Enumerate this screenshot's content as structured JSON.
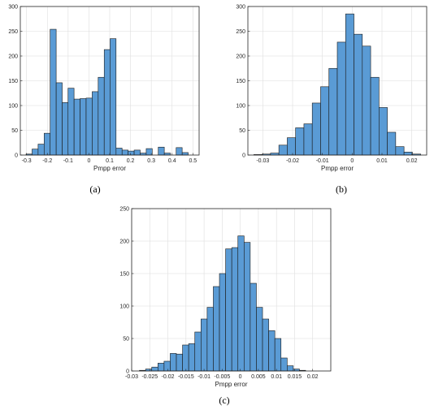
{
  "chart_data": [
    {
      "type": "bar",
      "panel_label": "(a)",
      "xlabel": "Pmpp error",
      "ylabel": "",
      "title": "",
      "xlim": [
        -0.33,
        0.53
      ],
      "ylim": [
        0,
        300
      ],
      "xticks": [
        -0.3,
        -0.2,
        -0.1,
        0,
        0.1,
        0.2,
        0.3,
        0.4,
        0.5
      ],
      "xtick_labels": [
        "-0.3",
        "-0.2",
        "-0.1",
        "0",
        "0.1",
        "0.2",
        "0.3",
        "0.4",
        "0.5"
      ],
      "yticks": [
        0,
        50,
        100,
        150,
        200,
        250,
        300
      ],
      "ytick_labels": [
        "0",
        "50",
        "100",
        "150",
        "200",
        "250",
        "300"
      ],
      "grid": true,
      "bin_width": 0.0289,
      "bin_centers": [
        -0.288,
        -0.259,
        -0.23,
        -0.201,
        -0.172,
        -0.143,
        -0.114,
        -0.086,
        -0.057,
        -0.028,
        0.001,
        0.03,
        0.059,
        0.088,
        0.116,
        0.145,
        0.174,
        0.203,
        0.232,
        0.261,
        0.29,
        0.319,
        0.348,
        0.377,
        0.405,
        0.434,
        0.463,
        0.492
      ],
      "values": [
        2,
        12,
        22,
        44,
        254,
        146,
        106,
        135,
        113,
        114,
        115,
        128,
        157,
        213,
        235,
        14,
        10,
        8,
        10,
        4,
        13,
        0,
        16,
        4,
        0,
        15,
        5,
        0
      ],
      "bar_color": "#5a9bd5"
    },
    {
      "type": "bar",
      "panel_label": "(b)",
      "xlabel": "Pmpp error",
      "ylabel": "",
      "title": "",
      "xlim": [
        -0.035,
        0.025
      ],
      "ylim": [
        0,
        300
      ],
      "xticks": [
        -0.03,
        -0.02,
        -0.01,
        0,
        0.01,
        0.02
      ],
      "xtick_labels": [
        "-0.03",
        "-0.02",
        "-0.01",
        "0",
        "0.01",
        "0.02"
      ],
      "yticks": [
        0,
        50,
        100,
        150,
        200,
        250,
        300
      ],
      "ytick_labels": [
        "0",
        "50",
        "100",
        "150",
        "200",
        "250",
        "300"
      ],
      "grid": true,
      "bin_width": 0.0028,
      "bin_centers": [
        -0.0316,
        -0.0288,
        -0.026,
        -0.0232,
        -0.0204,
        -0.0176,
        -0.0148,
        -0.012,
        -0.0092,
        -0.0064,
        -0.0036,
        -0.0008,
        0.002,
        0.0048,
        0.0076,
        0.0104,
        0.0132,
        0.016,
        0.0188,
        0.0216
      ],
      "values": [
        1,
        2,
        4,
        20,
        35,
        55,
        63,
        105,
        138,
        175,
        228,
        285,
        244,
        220,
        157,
        96,
        46,
        17,
        6,
        2
      ],
      "bar_color": "#5a9bd5"
    },
    {
      "type": "bar",
      "panel_label": "(c)",
      "xlabel": "Pmpp error",
      "ylabel": "",
      "title": "",
      "xlim": [
        -0.03,
        0.025
      ],
      "ylim": [
        0,
        250
      ],
      "xticks": [
        -0.03,
        -0.025,
        -0.02,
        -0.015,
        -0.01,
        -0.005,
        0,
        0.005,
        0.01,
        0.015,
        0.02
      ],
      "xtick_labels": [
        "-0.03",
        "-0.025",
        "-0.02",
        "-0.015",
        "-0.01",
        "-0.005",
        "0",
        "0.005",
        "0.01",
        "0.015",
        "0.02"
      ],
      "yticks": [
        0,
        50,
        100,
        150,
        200,
        250
      ],
      "ytick_labels": [
        "0",
        "50",
        "100",
        "150",
        "200",
        "250"
      ],
      "grid": true,
      "bin_width": 0.0017,
      "bin_centers": [
        -0.027,
        -0.0253,
        -0.0236,
        -0.0219,
        -0.0202,
        -0.0185,
        -0.0168,
        -0.0151,
        -0.0134,
        -0.0117,
        -0.01,
        -0.0083,
        -0.0066,
        -0.0049,
        -0.0032,
        -0.0015,
        0.0002,
        0.0019,
        0.0036,
        0.0053,
        0.007,
        0.0087,
        0.0104,
        0.0121,
        0.0138,
        0.0155,
        0.0172,
        0.0189,
        0.0206
      ],
      "values": [
        1,
        3,
        6,
        12,
        15,
        27,
        26,
        40,
        42,
        60,
        80,
        98,
        130,
        150,
        188,
        190,
        208,
        198,
        135,
        98,
        80,
        62,
        50,
        20,
        8,
        3,
        1,
        0,
        0
      ],
      "bar_color": "#5a9bd5"
    }
  ]
}
